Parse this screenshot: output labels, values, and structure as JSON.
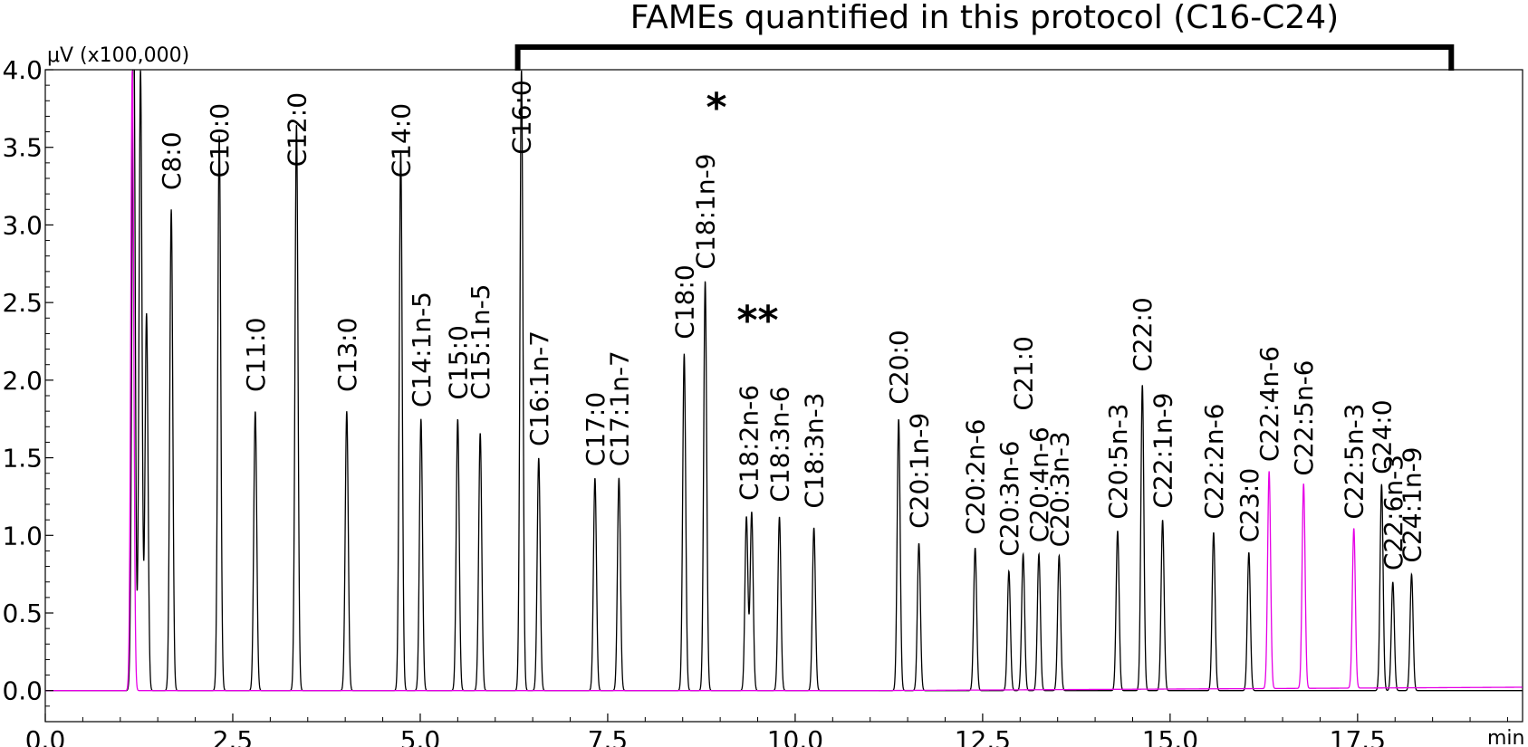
{
  "chart_data": {
    "type": "line",
    "title": "FAMEs quantified in this protocol (C16-C24)",
    "bracket": {
      "x_start": 6.3,
      "x_end": 18.75
    },
    "ylabel": "μV (x100,000)",
    "xlabel": "min",
    "xlim": [
      0,
      19.7
    ],
    "ylim": [
      -0.2,
      4.0
    ],
    "x_ticks": [
      "0.0",
      "2.5",
      "5.0",
      "7.5",
      "10.0",
      "12.5",
      "15.0",
      "17.5"
    ],
    "x_tick_values": [
      0,
      2.5,
      5,
      7.5,
      10,
      12.5,
      15,
      17.5
    ],
    "y_ticks": [
      "0.0",
      "0.5",
      "1.0",
      "1.5",
      "2.0",
      "2.5",
      "3.0",
      "3.5",
      "4.0"
    ],
    "y_tick_values": [
      0,
      0.5,
      1.0,
      1.5,
      2.0,
      2.5,
      3.0,
      3.5,
      4.0
    ],
    "grid": false,
    "series": [
      {
        "color": "#000000",
        "peaks": [
          {
            "x": 1.16,
            "y": 0.8
          },
          {
            "x": 1.18,
            "y": 4.0
          },
          {
            "x": 1.27,
            "y": 4.0
          },
          {
            "x": 1.35,
            "y": 2.43
          },
          {
            "x": 1.68,
            "y": 3.1
          },
          {
            "x": 2.32,
            "y": 3.58
          },
          {
            "x": 2.8,
            "y": 1.8
          },
          {
            "x": 3.35,
            "y": 3.65
          },
          {
            "x": 4.02,
            "y": 1.8
          },
          {
            "x": 4.74,
            "y": 3.48
          },
          {
            "x": 5.01,
            "y": 1.75
          },
          {
            "x": 5.5,
            "y": 1.75
          },
          {
            "x": 5.8,
            "y": 1.66
          },
          {
            "x": 6.35,
            "y": 4.0
          },
          {
            "x": 6.58,
            "y": 1.5
          },
          {
            "x": 7.33,
            "y": 1.37
          },
          {
            "x": 7.65,
            "y": 1.37
          },
          {
            "x": 8.52,
            "y": 2.17
          },
          {
            "x": 8.8,
            "y": 2.64
          },
          {
            "x": 9.35,
            "y": 1.12
          },
          {
            "x": 9.42,
            "y": 1.15
          },
          {
            "x": 9.79,
            "y": 1.12
          },
          {
            "x": 10.25,
            "y": 1.05
          },
          {
            "x": 11.38,
            "y": 1.75
          },
          {
            "x": 11.65,
            "y": 0.95
          },
          {
            "x": 12.4,
            "y": 0.92
          },
          {
            "x": 12.85,
            "y": 0.77
          },
          {
            "x": 13.04,
            "y": 0.88
          },
          {
            "x": 13.25,
            "y": 0.88
          },
          {
            "x": 13.52,
            "y": 0.87
          },
          {
            "x": 14.3,
            "y": 1.03
          },
          {
            "x": 14.63,
            "y": 1.97
          },
          {
            "x": 14.9,
            "y": 1.1
          },
          {
            "x": 15.58,
            "y": 1.02
          },
          {
            "x": 16.05,
            "y": 0.89
          },
          {
            "x": 17.82,
            "y": 1.33
          },
          {
            "x": 17.97,
            "y": 0.7
          },
          {
            "x": 18.22,
            "y": 0.75
          }
        ]
      },
      {
        "color": "#e600e6",
        "peaks": [
          {
            "x": 1.16,
            "y": 4.0
          },
          {
            "x": 16.32,
            "y": 1.4
          },
          {
            "x": 16.78,
            "y": 1.32
          },
          {
            "x": 17.45,
            "y": 1.03
          }
        ]
      }
    ],
    "annotations": [
      {
        "text": "C8:0",
        "x": 1.68,
        "y": 3.2
      },
      {
        "text": "C10:0",
        "x": 2.32,
        "y": 3.28
      },
      {
        "text": "C11:0",
        "x": 2.8,
        "y": 1.9
      },
      {
        "text": "C12:0",
        "x": 3.35,
        "y": 3.35
      },
      {
        "text": "C13:0",
        "x": 4.02,
        "y": 1.9
      },
      {
        "text": "C14:0",
        "x": 4.74,
        "y": 3.28
      },
      {
        "text": "C14:1n-5",
        "x": 5.01,
        "y": 1.8
      },
      {
        "text": "C15:0",
        "x": 5.5,
        "y": 1.85
      },
      {
        "text": "C15:1n-5",
        "x": 5.8,
        "y": 1.85
      },
      {
        "text": "C16:0",
        "x": 6.35,
        "y": 3.43
      },
      {
        "text": "C16:1n-7",
        "x": 6.58,
        "y": 1.55
      },
      {
        "text": "C17:0",
        "x": 7.33,
        "y": 1.42
      },
      {
        "text": "C17:1n-7",
        "x": 7.65,
        "y": 1.42
      },
      {
        "text": "C18:0",
        "x": 8.52,
        "y": 2.24
      },
      {
        "text": "C18:1n-9",
        "x": 8.8,
        "y": 2.69
      },
      {
        "text": "C18:2n-6",
        "x": 9.38,
        "y": 1.2
      },
      {
        "text": "C18:3n-6",
        "x": 9.79,
        "y": 1.19
      },
      {
        "text": "C18:3n-3",
        "x": 10.25,
        "y": 1.15
      },
      {
        "text": "C20:0",
        "x": 11.38,
        "y": 1.82
      },
      {
        "text": "C20:1n-9",
        "x": 11.65,
        "y": 1.02
      },
      {
        "text": "C20:2n-6",
        "x": 12.4,
        "y": 0.98
      },
      {
        "text": "C20:3n-6",
        "x": 12.85,
        "y": 0.84
      },
      {
        "text": "C21:0",
        "x": 13.04,
        "y": 1.78
      },
      {
        "text": "C20:4n-6",
        "x": 13.25,
        "y": 0.93
      },
      {
        "text": "C20:3n-3",
        "x": 13.52,
        "y": 0.9
      },
      {
        "text": "C20:5n-3",
        "x": 14.3,
        "y": 1.08
      },
      {
        "text": "C22:0",
        "x": 14.63,
        "y": 2.03
      },
      {
        "text": "C22:1n-9",
        "x": 14.9,
        "y": 1.15
      },
      {
        "text": "C22:2n-6",
        "x": 15.58,
        "y": 1.08
      },
      {
        "text": "C23:0",
        "x": 16.05,
        "y": 0.93
      },
      {
        "text": "C22:4n-6",
        "x": 16.32,
        "y": 1.45
      },
      {
        "text": "C22:5n-6",
        "x": 16.78,
        "y": 1.36
      },
      {
        "text": "C22:5n-3",
        "x": 17.45,
        "y": 1.08
      },
      {
        "text": "C24:0",
        "x": 17.82,
        "y": 1.37
      },
      {
        "text": "C22:6n-3",
        "x": 17.97,
        "y": 0.75
      },
      {
        "text": "C24:1n-9",
        "x": 18.22,
        "y": 0.8
      }
    ],
    "stars": [
      {
        "text": "*",
        "x": 8.95,
        "y": 3.67
      },
      {
        "text": "**",
        "x": 9.5,
        "y": 2.3
      }
    ]
  }
}
